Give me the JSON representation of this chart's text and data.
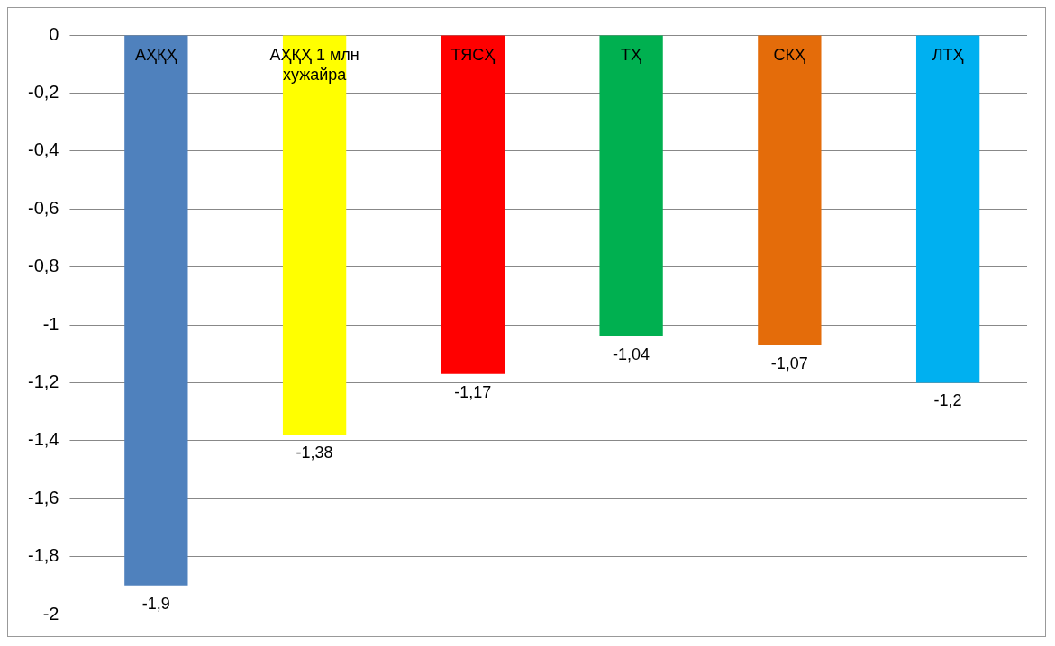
{
  "chart_data": {
    "type": "bar",
    "categories": [
      "AҲҚҲ",
      "AҲҚҲ 1 млн хужайра",
      "ТЯСҲ",
      "ТҲ",
      "СКҲ",
      "ЛТҲ"
    ],
    "values": [
      -1.9,
      -1.38,
      -1.17,
      -1.04,
      -1.07,
      -1.2
    ],
    "colors": [
      "#4f81bd",
      "#ffff00",
      "#ff0000",
      "#00b050",
      "#e46c0a",
      "#00b0f0"
    ],
    "value_labels": [
      "-1,9",
      "-1,38",
      "-1,17",
      "-1,04",
      "-1,07",
      "-1,2"
    ],
    "ylim": [
      -2,
      0
    ],
    "yticks": [
      0,
      {
        "value": -0.2,
        "label": "-0,2"
      },
      {
        "value": -0.4,
        "label": "-0,4"
      },
      {
        "value": -0.6,
        "label": "-0,6"
      },
      {
        "value": -0.8,
        "label": "-0,8"
      },
      -1,
      {
        "value": -1.2,
        "label": "-1,2"
      },
      {
        "value": -1.4,
        "label": "-1,4"
      },
      {
        "value": -1.6,
        "label": "-1,6"
      },
      {
        "value": -1.8,
        "label": "-1,8"
      },
      -2
    ],
    "grid": "y",
    "legend": false
  }
}
